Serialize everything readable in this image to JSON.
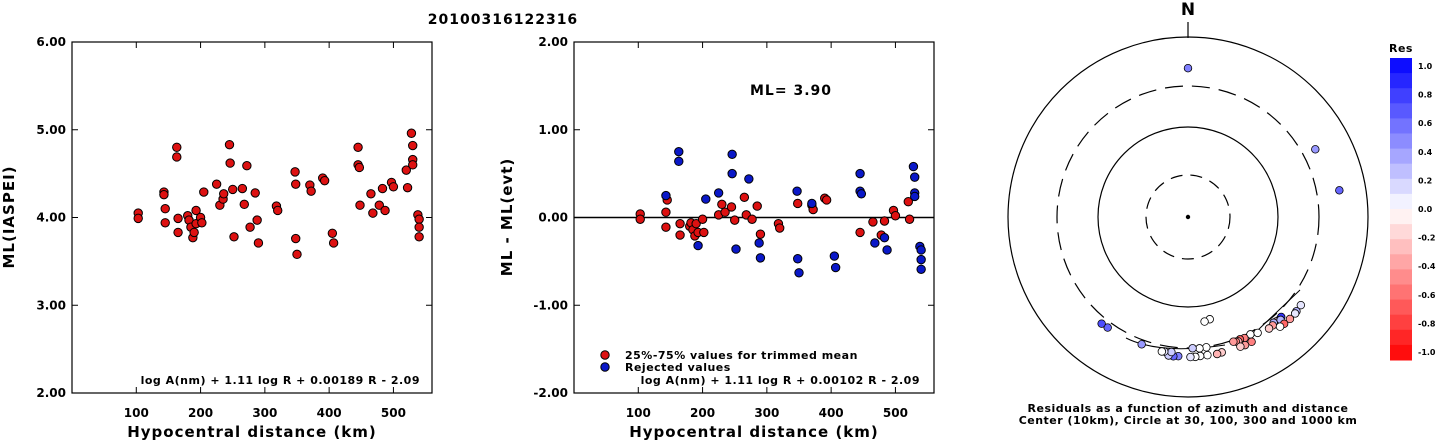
{
  "event_id": "20100316122316",
  "chart_data": [
    {
      "type": "scatter",
      "xlabel": "Hypocentral distance (km)",
      "ylabel": "ML(IASPEI)",
      "xlim": [
        0,
        560
      ],
      "ylim": [
        2.0,
        6.0
      ],
      "x_ticks": [
        "100",
        "200",
        "300",
        "400",
        "500"
      ],
      "y_ticks": [
        "2.00",
        "3.00",
        "4.00",
        "5.00",
        "6.00"
      ],
      "formula": "log A(nm) + 1.11 log R + 0.00189 R - 2.09",
      "colors": {
        "point": "#dd1111"
      },
      "points": [
        [
          103,
          4.05
        ],
        [
          103,
          3.99
        ],
        [
          143,
          4.29
        ],
        [
          143,
          4.26
        ],
        [
          145,
          4.1
        ],
        [
          145,
          3.94
        ],
        [
          163,
          4.8
        ],
        [
          163,
          4.69
        ],
        [
          165,
          3.99
        ],
        [
          165,
          3.83
        ],
        [
          180,
          4.02
        ],
        [
          182,
          3.97
        ],
        [
          185,
          3.89
        ],
        [
          188,
          3.77
        ],
        [
          190,
          3.83
        ],
        [
          193,
          4.08
        ],
        [
          193,
          3.93
        ],
        [
          200,
          4.0
        ],
        [
          202,
          3.94
        ],
        [
          205,
          4.29
        ],
        [
          225,
          4.38
        ],
        [
          230,
          4.14
        ],
        [
          235,
          4.21
        ],
        [
          236,
          4.27
        ],
        [
          245,
          4.83
        ],
        [
          246,
          4.62
        ],
        [
          250,
          4.32
        ],
        [
          252,
          3.78
        ],
        [
          265,
          4.33
        ],
        [
          268,
          4.15
        ],
        [
          272,
          4.59
        ],
        [
          277,
          3.89
        ],
        [
          285,
          4.28
        ],
        [
          288,
          3.97
        ],
        [
          290,
          3.71
        ],
        [
          318,
          4.13
        ],
        [
          320,
          4.08
        ],
        [
          347,
          4.52
        ],
        [
          348,
          4.38
        ],
        [
          348,
          3.76
        ],
        [
          350,
          3.58
        ],
        [
          370,
          4.37
        ],
        [
          372,
          4.3
        ],
        [
          390,
          4.45
        ],
        [
          393,
          4.42
        ],
        [
          405,
          3.82
        ],
        [
          407,
          3.71
        ],
        [
          445,
          4.8
        ],
        [
          445,
          4.6
        ],
        [
          447,
          4.57
        ],
        [
          448,
          4.14
        ],
        [
          465,
          4.27
        ],
        [
          468,
          4.05
        ],
        [
          478,
          4.14
        ],
        [
          483,
          4.33
        ],
        [
          487,
          4.08
        ],
        [
          497,
          4.4
        ],
        [
          500,
          4.35
        ],
        [
          520,
          4.54
        ],
        [
          522,
          4.34
        ],
        [
          528,
          4.96
        ],
        [
          530,
          4.82
        ],
        [
          530,
          4.66
        ],
        [
          530,
          4.6
        ],
        [
          538,
          4.03
        ],
        [
          540,
          3.98
        ],
        [
          540,
          3.89
        ],
        [
          540,
          3.78
        ]
      ]
    },
    {
      "type": "scatter",
      "xlabel": "Hypocentral distance (km)",
      "ylabel": "ML - ML(evt)",
      "xlim": [
        0,
        560
      ],
      "ylim": [
        -2.0,
        2.0
      ],
      "x_ticks": [
        "100",
        "200",
        "300",
        "400",
        "500"
      ],
      "y_ticks": [
        "-2.00",
        "-1.00",
        "0.00",
        "1.00",
        "2.00"
      ],
      "reference_line": 0.0,
      "annotation": "ML= 3.90",
      "formula": "log A(nm) + 1.11 log R + 0.00102 R - 2.09",
      "legend": {
        "position": "bottom-left",
        "entries": [
          "25%-75% values for trimmed mean",
          "Rejected values"
        ]
      },
      "colors": {
        "accepted": "#dd1111",
        "rejected": "#0a18c8"
      },
      "series": [
        {
          "name": "25%-75% values for trimmed mean",
          "points": [
            [
              103,
              0.04
            ],
            [
              103,
              -0.02
            ],
            [
              143,
              0.06
            ],
            [
              143,
              -0.11
            ],
            [
              145,
              0.2
            ],
            [
              165,
              -0.07
            ],
            [
              165,
              -0.2
            ],
            [
              180,
              -0.1
            ],
            [
              182,
              -0.06
            ],
            [
              185,
              -0.14
            ],
            [
              188,
              -0.21
            ],
            [
              190,
              -0.07
            ],
            [
              193,
              -0.17
            ],
            [
              200,
              -0.02
            ],
            [
              202,
              -0.17
            ],
            [
              225,
              0.03
            ],
            [
              230,
              0.15
            ],
            [
              235,
              0.06
            ],
            [
              245,
              0.12
            ],
            [
              250,
              -0.03
            ],
            [
              265,
              0.23
            ],
            [
              268,
              0.03
            ],
            [
              277,
              -0.02
            ],
            [
              285,
              0.13
            ],
            [
              290,
              -0.19
            ],
            [
              318,
              -0.07
            ],
            [
              320,
              -0.12
            ],
            [
              348,
              0.16
            ],
            [
              370,
              0.14
            ],
            [
              372,
              0.09
            ],
            [
              390,
              0.22
            ],
            [
              393,
              0.2
            ],
            [
              445,
              -0.17
            ],
            [
              465,
              -0.05
            ],
            [
              478,
              -0.2
            ],
            [
              483,
              -0.04
            ],
            [
              497,
              0.08
            ],
            [
              500,
              0.02
            ],
            [
              520,
              0.18
            ],
            [
              522,
              -0.02
            ]
          ]
        },
        {
          "name": "Rejected values",
          "points": [
            [
              143,
              0.25
            ],
            [
              163,
              0.75
            ],
            [
              163,
              0.64
            ],
            [
              193,
              -0.32
            ],
            [
              205,
              0.21
            ],
            [
              225,
              0.28
            ],
            [
              246,
              0.72
            ],
            [
              246,
              0.5
            ],
            [
              252,
              -0.36
            ],
            [
              272,
              0.44
            ],
            [
              288,
              -0.29
            ],
            [
              290,
              -0.46
            ],
            [
              347,
              0.3
            ],
            [
              348,
              -0.47
            ],
            [
              350,
              -0.63
            ],
            [
              370,
              0.16
            ],
            [
              405,
              -0.44
            ],
            [
              407,
              -0.57
            ],
            [
              445,
              0.5
            ],
            [
              445,
              0.3
            ],
            [
              447,
              0.27
            ],
            [
              468,
              -0.29
            ],
            [
              487,
              -0.37
            ],
            [
              483,
              -0.23
            ],
            [
              528,
              0.58
            ],
            [
              530,
              0.46
            ],
            [
              530,
              0.28
            ],
            [
              530,
              0.24
            ],
            [
              538,
              -0.33
            ],
            [
              540,
              -0.37
            ],
            [
              540,
              -0.48
            ],
            [
              540,
              -0.59
            ]
          ]
        }
      ]
    },
    {
      "type": "polar-scatter",
      "north_label": "N",
      "caption_line1": "Residuals as a function of azimuth and distance",
      "caption_line2": "Center (10km), Circle at 30, 100, 300 and 1000 km",
      "colorbar": {
        "title": "Res",
        "ticks": [
          "1.0",
          "0.8",
          "0.6",
          "0.4",
          "0.2",
          "0.0",
          "-0.2",
          "-0.4",
          "-0.6",
          "-0.8",
          "-1.0"
        ],
        "max_color": "#0000ff",
        "min_color": "#ff0000"
      },
      "points": [
        {
          "azimuth": 0,
          "distance": 450,
          "res": 0.5
        },
        {
          "azimuth": 62,
          "distance": 400,
          "res": 0.4
        },
        {
          "azimuth": 80,
          "distance": 510,
          "res": 0.6
        },
        {
          "azimuth": 168,
          "distance": 145,
          "res": 0.0
        },
        {
          "azimuth": 171,
          "distance": 150,
          "res": 0.0
        },
        {
          "azimuth": 137,
          "distance": 330,
          "res": 0.8
        },
        {
          "azimuth": 139,
          "distance": 335,
          "res": 0.7
        },
        {
          "azimuth": 140,
          "distance": 330,
          "res": -0.2
        },
        {
          "azimuth": 141,
          "distance": 325,
          "res": 0.3
        },
        {
          "azimuth": 142,
          "distance": 338,
          "res": -0.4
        },
        {
          "azimuth": 144,
          "distance": 340,
          "res": -0.2
        },
        {
          "azimuth": 138,
          "distance": 345,
          "res": 0.3
        },
        {
          "azimuth": 128,
          "distance": 390,
          "res": 0.1
        },
        {
          "azimuth": 131,
          "distance": 395,
          "res": 0.3
        },
        {
          "azimuth": 132,
          "distance": 400,
          "res": 0.1
        },
        {
          "azimuth": 135,
          "distance": 400,
          "res": -0.4
        },
        {
          "azimuth": 138,
          "distance": 395,
          "res": -0.6
        },
        {
          "azimuth": 140,
          "distance": 390,
          "res": 0.0
        },
        {
          "azimuth": 152,
          "distance": 300,
          "res": 0.0
        },
        {
          "azimuth": 155,
          "distance": 305,
          "res": -0.5
        },
        {
          "azimuth": 157,
          "distance": 300,
          "res": -0.6
        },
        {
          "azimuth": 158,
          "distance": 310,
          "res": -0.3
        },
        {
          "azimuth": 159,
          "distance": 305,
          "res": -0.5
        },
        {
          "azimuth": 160,
          "distance": 298,
          "res": -0.4
        },
        {
          "azimuth": 153,
          "distance": 360,
          "res": -0.5
        },
        {
          "azimuth": 156,
          "distance": 362,
          "res": -0.4
        },
        {
          "azimuth": 158,
          "distance": 358,
          "res": -0.2
        },
        {
          "azimuth": 149,
          "distance": 318,
          "res": 0.0
        },
        {
          "azimuth": 172,
          "distance": 290,
          "res": 0.0
        },
        {
          "azimuth": 175,
          "distance": 292,
          "res": 0.0
        },
        {
          "azimuth": 178,
          "distance": 288,
          "res": 0.2
        },
        {
          "azimuth": 172,
          "distance": 355,
          "res": 0.0
        },
        {
          "azimuth": 175,
          "distance": 355,
          "res": 0.0
        },
        {
          "azimuth": 177,
          "distance": 360,
          "res": 0.0
        },
        {
          "azimuth": 166,
          "distance": 355,
          "res": -0.2
        },
        {
          "azimuth": 168,
          "distance": 360,
          "res": -0.3
        },
        {
          "azimuth": 179,
          "distance": 360,
          "res": 0.1
        },
        {
          "azimuth": 184,
          "distance": 355,
          "res": 0.5
        },
        {
          "azimuth": 186,
          "distance": 360,
          "res": 0.6
        },
        {
          "azimuth": 188,
          "distance": 358,
          "res": 0.2
        },
        {
          "azimuth": 187,
          "distance": 325,
          "res": 0.2
        },
        {
          "azimuth": 190,
          "distance": 330,
          "res": 0.1
        },
        {
          "azimuth": 191,
          "distance": 333,
          "res": 0.0
        },
        {
          "azimuth": 200,
          "distance": 320,
          "res": 0.4
        },
        {
          "azimuth": 216,
          "distance": 330,
          "res": 0.6
        },
        {
          "azimuth": 219,
          "distance": 335,
          "res": 0.7
        }
      ]
    }
  ]
}
